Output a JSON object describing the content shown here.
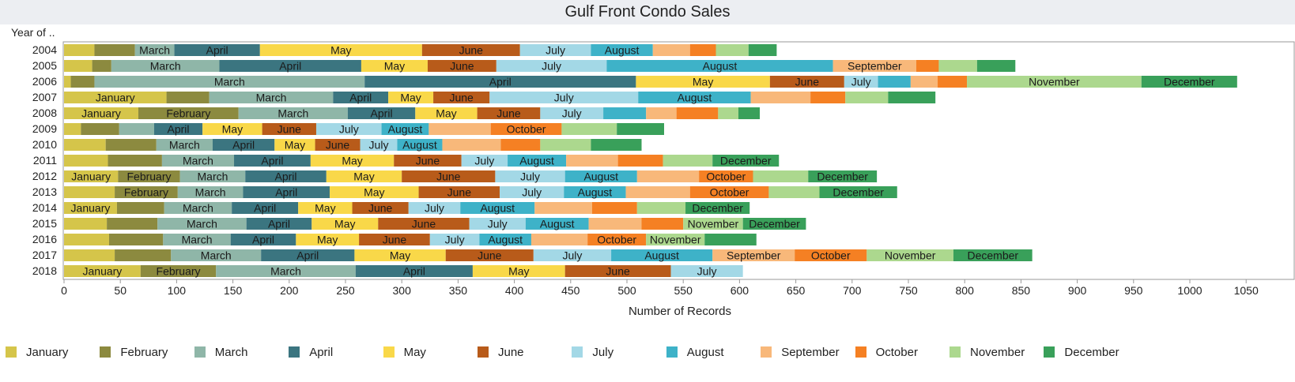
{
  "chart_data": {
    "type": "bar",
    "orientation": "horizontal",
    "stacked": true,
    "title": "Gulf Front Condo Sales",
    "row_header": "Year of ..",
    "xlabel": "Number of Records",
    "xlim": [
      0,
      1080
    ],
    "xticks": [
      0,
      50,
      100,
      150,
      200,
      250,
      300,
      350,
      400,
      450,
      500,
      550,
      600,
      650,
      700,
      750,
      800,
      850,
      900,
      950,
      1000,
      1050
    ],
    "grid": false,
    "legend_position": "bottom",
    "categories": [
      "2004",
      "2005",
      "2006",
      "2007",
      "2008",
      "2009",
      "2010",
      "2011",
      "2012",
      "2013",
      "2014",
      "2015",
      "2016",
      "2017",
      "2018"
    ],
    "series": [
      {
        "name": "January",
        "color": "#d5c54a",
        "values": [
          27,
          25,
          6,
          91,
          66,
          15,
          37,
          39,
          48,
          45,
          47,
          38,
          40,
          45,
          68
        ]
      },
      {
        "name": "February",
        "color": "#8c8a3f",
        "values": [
          36,
          17,
          21,
          38,
          89,
          34,
          45,
          48,
          55,
          56,
          42,
          45,
          48,
          50,
          67
        ]
      },
      {
        "name": "March",
        "color": "#8fb6a8",
        "values": [
          35,
          96,
          240,
          110,
          97,
          31,
          50,
          64,
          58,
          58,
          60,
          79,
          60,
          80,
          124
        ]
      },
      {
        "name": "April",
        "color": "#3b7580",
        "values": [
          76,
          126,
          241,
          49,
          60,
          43,
          55,
          68,
          72,
          77,
          59,
          58,
          58,
          83,
          104
        ]
      },
      {
        "name": "May",
        "color": "#f9d849",
        "values": [
          144,
          59,
          119,
          40,
          55,
          53,
          36,
          74,
          67,
          79,
          48,
          59,
          56,
          81,
          82
        ]
      },
      {
        "name": "June",
        "color": "#b85b1a",
        "values": [
          87,
          61,
          66,
          50,
          56,
          48,
          40,
          60,
          83,
          72,
          50,
          81,
          63,
          78,
          94
        ]
      },
      {
        "name": "July",
        "color": "#a3d8e6",
        "values": [
          63,
          98,
          30,
          132,
          56,
          58,
          33,
          41,
          62,
          57,
          46,
          50,
          44,
          69,
          64
        ]
      },
      {
        "name": "August",
        "color": "#3eb2c8",
        "values": [
          55,
          201,
          29,
          100,
          38,
          42,
          40,
          52,
          64,
          55,
          66,
          56,
          46,
          90,
          0
        ]
      },
      {
        "name": "September",
        "color": "#f8b87a",
        "values": [
          33,
          74,
          24,
          53,
          27,
          55,
          52,
          46,
          55,
          57,
          51,
          47,
          50,
          73,
          0
        ]
      },
      {
        "name": "October",
        "color": "#f58023",
        "values": [
          23,
          20,
          26,
          31,
          37,
          63,
          35,
          40,
          48,
          70,
          40,
          37,
          52,
          64,
          0
        ]
      },
      {
        "name": "November",
        "color": "#acd88e",
        "values": [
          29,
          34,
          155,
          38,
          18,
          49,
          45,
          44,
          49,
          45,
          43,
          53,
          52,
          77,
          0
        ]
      },
      {
        "name": "December",
        "color": "#39a05a",
        "values": [
          25,
          34,
          85,
          42,
          19,
          42,
          45,
          59,
          61,
          69,
          57,
          56,
          46,
          70,
          0
        ]
      }
    ]
  }
}
